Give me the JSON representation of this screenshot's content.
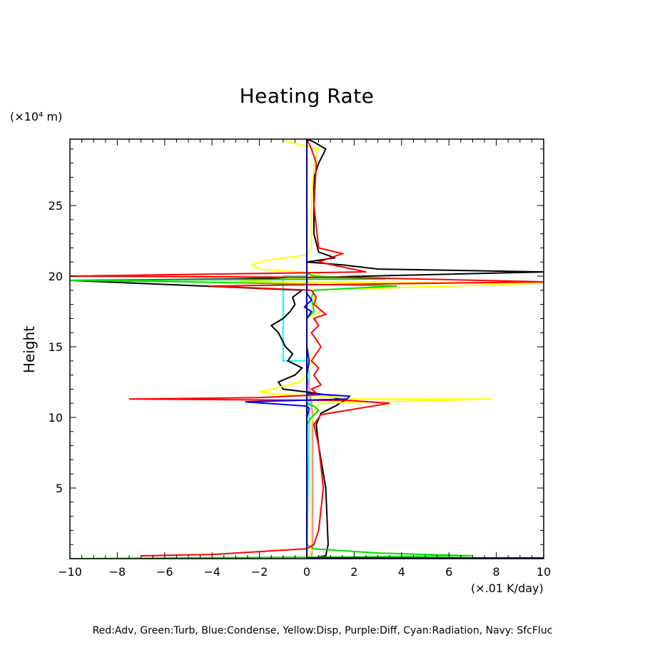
{
  "chart_data": {
    "type": "line",
    "title": "Heating Rate",
    "ylabel": "Height",
    "yunit": "(×10⁴ m)",
    "xunit": "(×.01 K/day)",
    "xlim": [
      -10,
      10
    ],
    "ylim": [
      0,
      29.7
    ],
    "x_ticks": [
      "−10",
      "−8",
      "−6",
      "−4",
      "−2",
      "0",
      "2",
      "4",
      "6",
      "8",
      "10"
    ],
    "y_ticks": [
      "5",
      "10",
      "15",
      "20",
      "25"
    ],
    "x_tick_values": [
      -10,
      -8,
      -6,
      -4,
      -2,
      0,
      2,
      4,
      6,
      8,
      10
    ],
    "y_tick_values": [
      5,
      10,
      15,
      20,
      25
    ],
    "legend_text": "Red:Adv, Green:Turb, Blue:Condense, Yellow:Disp, Purple:Diff, Cyan:Radiation, Navy: SfcFluc",
    "series": [
      {
        "color": "#00ffff",
        "points": [
          [
            0,
            0
          ],
          [
            0.1,
            10
          ],
          [
            0.1,
            14
          ],
          [
            -1,
            14
          ],
          [
            -1,
            20
          ],
          [
            0,
            20
          ],
          [
            0,
            29.7
          ]
        ]
      },
      {
        "color": "#ff69b4",
        "points": [
          [
            0.2,
            0
          ],
          [
            0.25,
            1
          ],
          [
            0.25,
            10
          ],
          [
            0.2,
            11
          ],
          [
            0,
            13
          ],
          [
            0,
            29.7
          ]
        ]
      },
      {
        "color": "#000000",
        "points": [
          [
            0,
            0
          ],
          [
            0.8,
            0.2
          ],
          [
            0.9,
            1
          ],
          [
            0.8,
            5
          ],
          [
            0.5,
            8
          ],
          [
            0.4,
            9.5
          ],
          [
            0.6,
            10.3
          ],
          [
            1.2,
            10.8
          ],
          [
            1.6,
            11.2
          ],
          [
            0.8,
            11.6
          ],
          [
            0,
            11.8
          ],
          [
            -1,
            12
          ],
          [
            -1.2,
            12.5
          ],
          [
            -0.5,
            13
          ],
          [
            -0.2,
            13.5
          ],
          [
            -0.8,
            14
          ],
          [
            -0.6,
            14.5
          ],
          [
            -0.9,
            15
          ],
          [
            -1.2,
            16
          ],
          [
            -1.5,
            16.5
          ],
          [
            -1,
            17
          ],
          [
            -0.7,
            17.5
          ],
          [
            -0.5,
            18
          ],
          [
            -0.6,
            18.5
          ],
          [
            -0.2,
            19
          ],
          [
            -10,
            19.7
          ],
          [
            -3,
            19.8
          ],
          [
            0,
            19.9
          ],
          [
            10,
            20.3
          ],
          [
            3,
            20.5
          ],
          [
            1.5,
            20.8
          ],
          [
            0,
            21
          ],
          [
            1.2,
            21.3
          ],
          [
            0.5,
            21.7
          ],
          [
            0.3,
            23
          ],
          [
            0.3,
            27
          ],
          [
            0.5,
            28
          ],
          [
            0.8,
            29
          ],
          [
            0.3,
            29.5
          ],
          [
            0,
            29.7
          ]
        ]
      },
      {
        "color": "#ffff00",
        "points": [
          [
            0,
            0
          ],
          [
            0.2,
            0.5
          ],
          [
            0.2,
            5
          ],
          [
            0.2,
            9.5
          ],
          [
            0.3,
            10.5
          ],
          [
            0.5,
            11
          ],
          [
            7.8,
            11.3
          ],
          [
            2,
            11.3
          ],
          [
            0.8,
            11.5
          ],
          [
            -1,
            11.6
          ],
          [
            -2,
            11.8
          ],
          [
            -1.5,
            12
          ],
          [
            -0.3,
            12.5
          ],
          [
            0,
            13
          ],
          [
            0.2,
            14
          ],
          [
            0,
            15
          ],
          [
            0,
            17
          ],
          [
            0.6,
            17.5
          ],
          [
            0.4,
            18
          ],
          [
            0.3,
            18.5
          ],
          [
            0.2,
            19
          ],
          [
            10,
            19.5
          ],
          [
            -3,
            19.6
          ],
          [
            0,
            19.9
          ],
          [
            0.5,
            20.2
          ],
          [
            -2,
            20.5
          ],
          [
            -2.3,
            20.8
          ],
          [
            -1.8,
            21.1
          ],
          [
            0,
            21.5
          ],
          [
            0.2,
            22
          ],
          [
            0.2,
            25
          ],
          [
            0.3,
            28
          ],
          [
            0.5,
            29
          ],
          [
            -1,
            29.6
          ]
        ]
      },
      {
        "color": "#00dd00",
        "points": [
          [
            -10,
            0
          ],
          [
            0,
            0.1
          ],
          [
            7,
            0.2
          ],
          [
            3,
            0.4
          ],
          [
            0.3,
            0.7
          ],
          [
            0,
            1
          ],
          [
            0,
            9.5
          ],
          [
            0.2,
            10
          ],
          [
            0.5,
            10.5
          ],
          [
            0.3,
            10.8
          ],
          [
            0,
            11
          ],
          [
            0,
            17
          ],
          [
            0.3,
            17.5
          ],
          [
            0.2,
            18.5
          ],
          [
            0.3,
            19
          ],
          [
            3.8,
            19.3
          ],
          [
            -5,
            19.6
          ],
          [
            -10,
            19.7
          ],
          [
            3.3,
            19.8
          ],
          [
            0.3,
            20
          ],
          [
            0,
            20.2
          ],
          [
            0,
            29.7
          ]
        ]
      },
      {
        "color": "#ff0000",
        "points": [
          [
            -7,
            0.2
          ],
          [
            -4,
            0.3
          ],
          [
            0,
            0.7
          ],
          [
            0.3,
            1
          ],
          [
            0.5,
            2
          ],
          [
            0.7,
            5
          ],
          [
            0.5,
            8
          ],
          [
            0.3,
            9.5
          ],
          [
            0.6,
            10.2
          ],
          [
            3.5,
            11
          ],
          [
            1.8,
            11.2
          ],
          [
            -7.5,
            11.3
          ],
          [
            -2,
            11.4
          ],
          [
            0.5,
            11.6
          ],
          [
            0.2,
            12
          ],
          [
            0.6,
            12.3
          ],
          [
            0.3,
            13
          ],
          [
            0.5,
            13.5
          ],
          [
            0.2,
            14
          ],
          [
            0.6,
            15
          ],
          [
            0.2,
            16
          ],
          [
            0.5,
            16.5
          ],
          [
            0.3,
            17
          ],
          [
            0.8,
            17.3
          ],
          [
            0.3,
            18
          ],
          [
            0.4,
            18.5
          ],
          [
            0.2,
            19
          ],
          [
            -4.1,
            19.3
          ],
          [
            10,
            19.6
          ],
          [
            2,
            19.9
          ],
          [
            -10,
            20
          ],
          [
            2.5,
            20.3
          ],
          [
            0.5,
            21
          ],
          [
            1.5,
            21.6
          ],
          [
            0.5,
            22
          ],
          [
            0.3,
            25
          ],
          [
            0.4,
            28
          ],
          [
            0.2,
            29
          ],
          [
            0,
            29.7
          ]
        ]
      },
      {
        "color": "#0000ff",
        "points": [
          [
            0,
            0
          ],
          [
            0,
            10
          ],
          [
            0.1,
            10.6
          ],
          [
            0,
            10.8
          ],
          [
            -2.6,
            11.1
          ],
          [
            1.7,
            11.3
          ],
          [
            1.8,
            11.5
          ],
          [
            0,
            11.7
          ],
          [
            0,
            13
          ],
          [
            0.1,
            14
          ],
          [
            0,
            15
          ],
          [
            0,
            17
          ],
          [
            0.2,
            17.5
          ],
          [
            -0.1,
            17.8
          ],
          [
            0,
            18
          ],
          [
            0.2,
            18.3
          ],
          [
            0,
            18.8
          ],
          [
            0,
            29.7
          ]
        ]
      },
      {
        "color": "#000080",
        "points": [
          [
            0,
            0.05
          ],
          [
            10,
            0.05
          ],
          [
            0,
            0.05
          ],
          [
            0,
            29.7
          ]
        ]
      }
    ]
  }
}
